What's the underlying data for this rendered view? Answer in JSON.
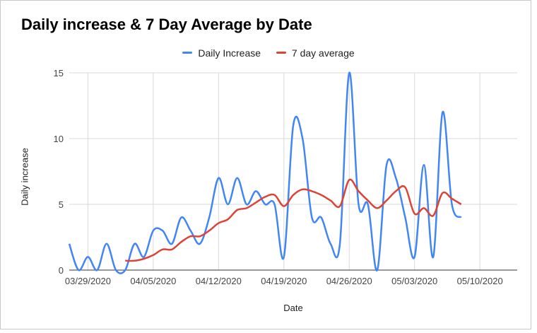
{
  "chart_data": {
    "type": "line",
    "title": "Daily increase & 7 Day Average by Date",
    "xlabel": "Date",
    "ylabel": "Daily increase",
    "ylim": [
      0,
      15
    ],
    "yticks": [
      "0",
      "5",
      "10",
      "15"
    ],
    "xticks": [
      "03/29/2020",
      "04/05/2020",
      "04/12/2020",
      "04/19/2020",
      "04/26/2020",
      "05/03/2020",
      "05/10/2020"
    ],
    "xrange": [
      "03/27/2020",
      "05/14/2020"
    ],
    "grid": true,
    "legend": "top",
    "x": [
      "03/27/2020",
      "03/28/2020",
      "03/29/2020",
      "03/30/2020",
      "03/31/2020",
      "04/01/2020",
      "04/02/2020",
      "04/03/2020",
      "04/04/2020",
      "04/05/2020",
      "04/06/2020",
      "04/07/2020",
      "04/08/2020",
      "04/09/2020",
      "04/10/2020",
      "04/11/2020",
      "04/12/2020",
      "04/13/2020",
      "04/14/2020",
      "04/15/2020",
      "04/16/2020",
      "04/17/2020",
      "04/18/2020",
      "04/19/2020",
      "04/20/2020",
      "04/21/2020",
      "04/22/2020",
      "04/23/2020",
      "04/24/2020",
      "04/25/2020",
      "04/26/2020",
      "04/27/2020",
      "04/28/2020",
      "04/29/2020",
      "04/30/2020",
      "05/01/2020",
      "05/02/2020",
      "05/03/2020",
      "05/04/2020",
      "05/05/2020",
      "05/06/2020",
      "05/07/2020",
      "05/08/2020"
    ],
    "series": [
      {
        "name": "Daily Increase",
        "color": "#4285f4",
        "values": [
          2,
          0,
          1,
          0,
          2,
          0,
          0,
          2,
          1,
          3,
          3,
          2,
          4,
          3,
          2,
          4,
          7,
          5,
          7,
          5,
          6,
          5,
          5,
          1,
          11,
          10,
          4,
          4,
          2,
          2,
          15,
          5,
          5,
          0,
          8,
          7,
          4,
          1,
          8,
          1,
          12,
          5,
          4
        ]
      },
      {
        "name": "7 day average",
        "color": "#db4437",
        "values": [
          null,
          null,
          null,
          null,
          null,
          null,
          0.71,
          0.71,
          0.86,
          1.14,
          1.57,
          1.57,
          2.14,
          2.57,
          2.57,
          3,
          3.57,
          3.86,
          4.57,
          4.71,
          5.14,
          5.57,
          5.71,
          4.86,
          5.71,
          6.14,
          6,
          5.71,
          5.29,
          4.86,
          6.86,
          6,
          5.29,
          4.71,
          5.29,
          6,
          6.29,
          4.29,
          4.71,
          4.14,
          5.86,
          5.43,
          5
        ]
      }
    ]
  }
}
